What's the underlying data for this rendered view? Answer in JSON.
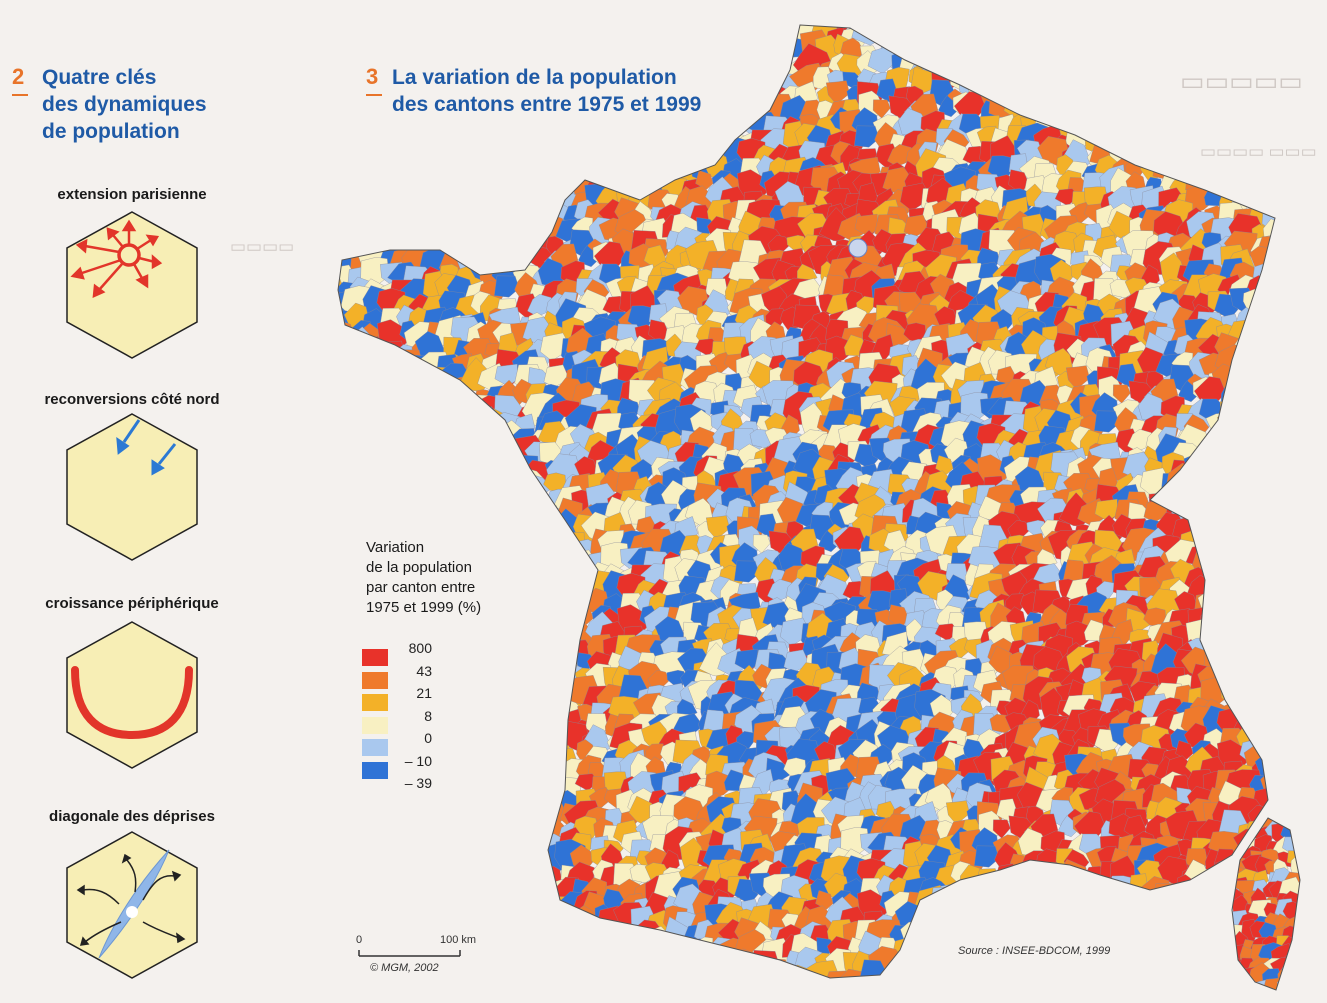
{
  "section2": {
    "number": "2",
    "title_lines": [
      "Quatre clés",
      "des dynamiques",
      "de population"
    ]
  },
  "keys": [
    {
      "label": "extension parisienne",
      "icon": "paris-extension-icon"
    },
    {
      "label": "reconversions côté nord",
      "icon": "north-arrows-icon"
    },
    {
      "label": "croissance périphérique",
      "icon": "peripheral-arc-icon"
    },
    {
      "label": "diagonale des déprises",
      "icon": "diagonal-decline-icon"
    }
  ],
  "section3": {
    "number": "3",
    "title_lines": [
      "La variation de la population",
      "des cantons entre 1975 et 1999"
    ]
  },
  "legend": {
    "title_lines": [
      "Variation",
      "de la population",
      "par canton entre",
      "1975 et 1999 (%)"
    ],
    "classes": [
      {
        "value": "800",
        "color": "#e8322a"
      },
      {
        "value": "43",
        "color": "#ef7a2c"
      },
      {
        "value": "21",
        "color": "#f3b128"
      },
      {
        "value": "8",
        "color": "#f8f0c2"
      },
      {
        "value": "0",
        "color": "#a9c8ee"
      },
      {
        "value": "– 10",
        "color": "#2f73d6"
      },
      {
        "value": "– 39",
        "color": ""
      }
    ]
  },
  "scale": {
    "zero": "0",
    "max": "100 km"
  },
  "source": "Source : INSEE-BDCOM, 1999",
  "copyright": "© MGM, 2002",
  "colors": {
    "title_blue": "#1f5aa6",
    "number_orange": "#e8742a",
    "hex_fill": "#f7eeb5",
    "arrow_red": "#e2352a",
    "arrow_blue": "#2b79d4"
  }
}
